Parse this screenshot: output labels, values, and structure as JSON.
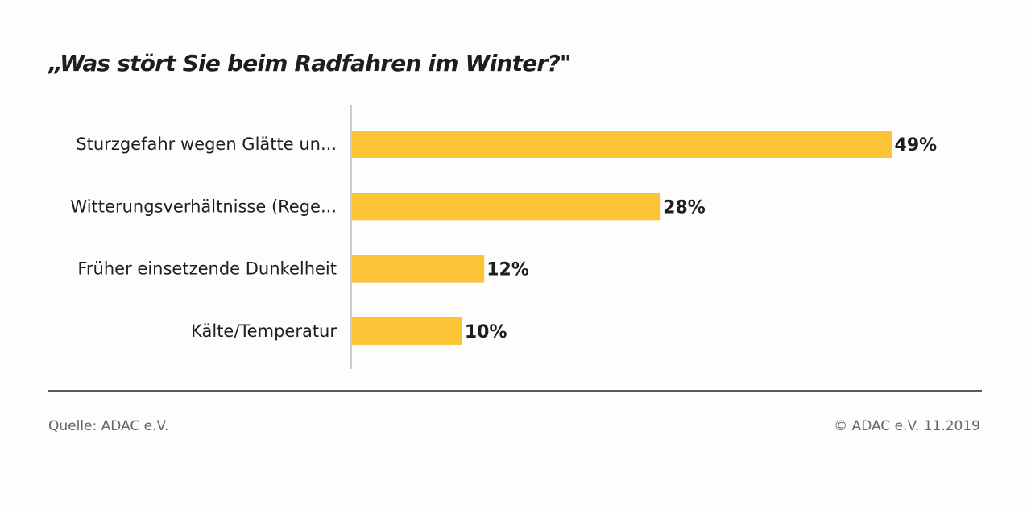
{
  "title": "„Was stört Sie beim Radfahren im Winter?\"",
  "footer": {
    "source": "Quelle: ADAC e.V.",
    "copyright": "© ADAC e.V. 11.2019"
  },
  "colors": {
    "bar": "#fbc335",
    "text": "#1e1e1e",
    "axis": "#cccccc",
    "rule": "#5a5a5a",
    "footer": "#666666"
  },
  "chart_data": {
    "type": "bar",
    "orientation": "horizontal",
    "categories": [
      "Sturzgefahr wegen Glätte un...",
      "Witterungsverhältnisse (Rege...",
      "Früher einsetzende Dunkelheit",
      "Kälte/Temperatur"
    ],
    "values": [
      49,
      28,
      12,
      10
    ],
    "value_labels": [
      "49%",
      "28%",
      "12%",
      "10%"
    ],
    "unit": "%",
    "xlim": [
      0,
      57
    ],
    "grid": false,
    "legend": "none"
  }
}
